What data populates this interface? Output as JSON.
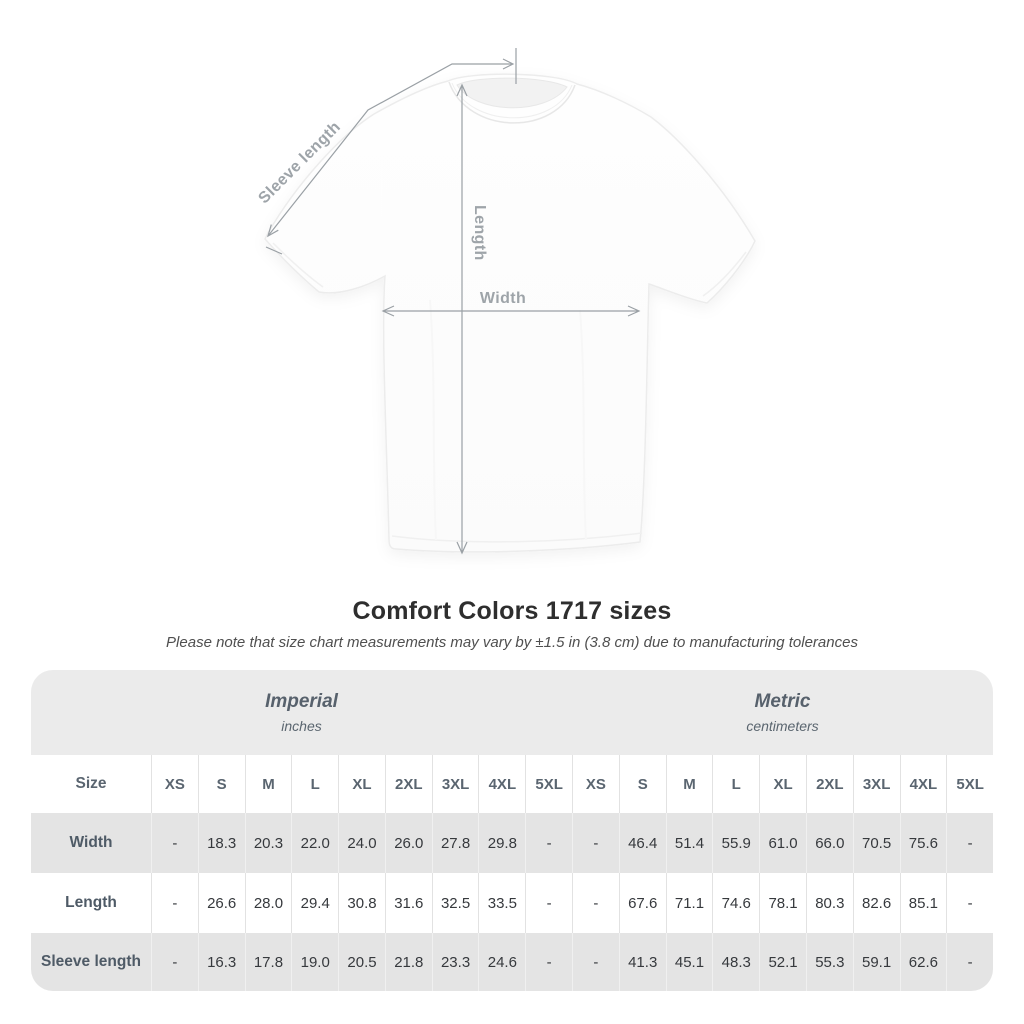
{
  "annotations": {
    "sleeve_length": "Sleeve length",
    "length": "Length",
    "width": "Width"
  },
  "heading": {
    "title": "Comfort Colors 1717 sizes",
    "subtitle": "Please note that size chart measurements may vary by ±1.5 in (3.8 cm) due to manufacturing tolerances"
  },
  "chart_data": {
    "type": "table",
    "title": "Comfort Colors 1717 sizes",
    "unit_groups": [
      {
        "label": "Imperial",
        "sublabel": "inches"
      },
      {
        "label": "Metric",
        "sublabel": "centimeters"
      }
    ],
    "corner_header": "Size",
    "size_columns": [
      "XS",
      "S",
      "M",
      "L",
      "XL",
      "2XL",
      "3XL",
      "4XL",
      "5XL"
    ],
    "rows": [
      {
        "label": "Width",
        "imperial": [
          "-",
          "18.3",
          "20.3",
          "22.0",
          "24.0",
          "26.0",
          "27.8",
          "29.8",
          "-"
        ],
        "metric": [
          "-",
          "46.4",
          "51.4",
          "55.9",
          "61.0",
          "66.0",
          "70.5",
          "75.6",
          "-"
        ]
      },
      {
        "label": "Length",
        "imperial": [
          "-",
          "26.6",
          "28.0",
          "29.4",
          "30.8",
          "31.6",
          "32.5",
          "33.5",
          "-"
        ],
        "metric": [
          "-",
          "67.6",
          "71.1",
          "74.6",
          "78.1",
          "80.3",
          "82.6",
          "85.1",
          "-"
        ]
      },
      {
        "label": "Sleeve length",
        "imperial": [
          "-",
          "16.3",
          "17.8",
          "19.0",
          "20.5",
          "21.8",
          "23.3",
          "24.6",
          "-"
        ],
        "metric": [
          "-",
          "41.3",
          "45.1",
          "48.3",
          "52.1",
          "55.3",
          "59.1",
          "62.6",
          "-"
        ]
      }
    ]
  },
  "colors": {
    "band_gray": "#ebebeb",
    "row_gray": "#e4e4e4",
    "annotation_gray": "#9ea4a9",
    "title_dark": "#2e2e2e",
    "label_slate": "#4e5a66"
  }
}
